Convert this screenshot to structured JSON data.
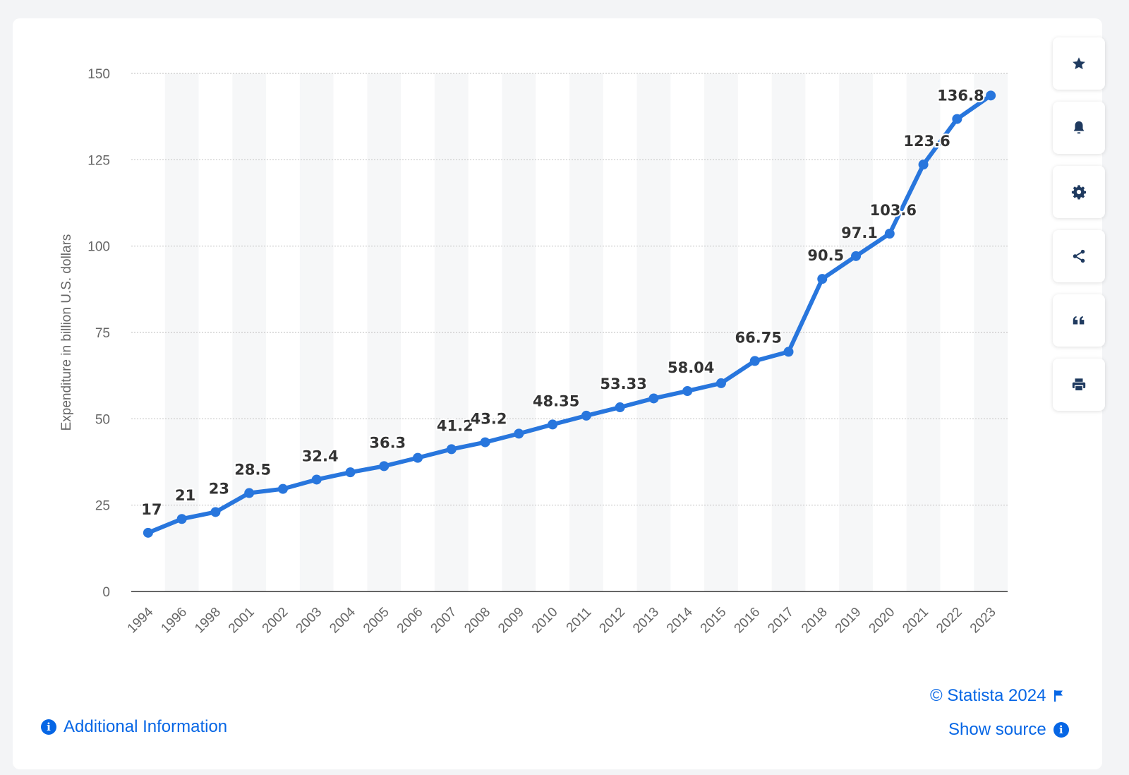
{
  "chart_data": {
    "type": "line",
    "ylabel": "Expenditure in billion U.S. dollars",
    "xlabel": "",
    "ylim": [
      0,
      150
    ],
    "yticks": [
      0,
      25,
      50,
      75,
      100,
      125,
      150
    ],
    "grid": true,
    "categories": [
      "1994",
      "1996",
      "1998",
      "2001",
      "2002",
      "2003",
      "2004",
      "2005",
      "2006",
      "2007",
      "2008",
      "2009",
      "2010",
      "2011",
      "2012",
      "2013",
      "2014",
      "2015",
      "2016",
      "2017",
      "2018",
      "2019",
      "2020",
      "2021",
      "2022",
      "2023"
    ],
    "series": [
      {
        "values": [
          17,
          21,
          23,
          28.5,
          29.7,
          32.4,
          34.5,
          36.3,
          38.7,
          41.2,
          43.2,
          45.7,
          48.35,
          50.9,
          53.33,
          55.9,
          58.04,
          60.3,
          66.75,
          69.4,
          90.5,
          97.1,
          103.6,
          123.6,
          136.8,
          143.6
        ],
        "data_labels": [
          "17",
          "21",
          "23",
          "28.5",
          "",
          "32.4",
          "",
          "36.3",
          "",
          "41.2",
          "43.2",
          "",
          "48.35",
          "",
          "53.33",
          "",
          "58.04",
          "",
          "66.75",
          "",
          "90.5",
          "97.1",
          "103.6",
          "123.6",
          "136.8",
          ""
        ],
        "color": "#2876dd"
      }
    ]
  },
  "colors": {
    "line": "#2876dd",
    "accent": "#0666e5"
  },
  "toolbar": {
    "buttons": [
      {
        "icon": "star-icon",
        "label": "Favorite"
      },
      {
        "icon": "bell-icon",
        "label": "Notifications"
      },
      {
        "icon": "gear-icon",
        "label": "Settings"
      },
      {
        "icon": "share-icon",
        "label": "Share"
      },
      {
        "icon": "quote-icon",
        "label": "Citation"
      },
      {
        "icon": "print-icon",
        "label": "Print"
      }
    ]
  },
  "footer": {
    "copyright": "© Statista 2024",
    "show_source": "Show source",
    "additional_info": "Additional Information"
  }
}
